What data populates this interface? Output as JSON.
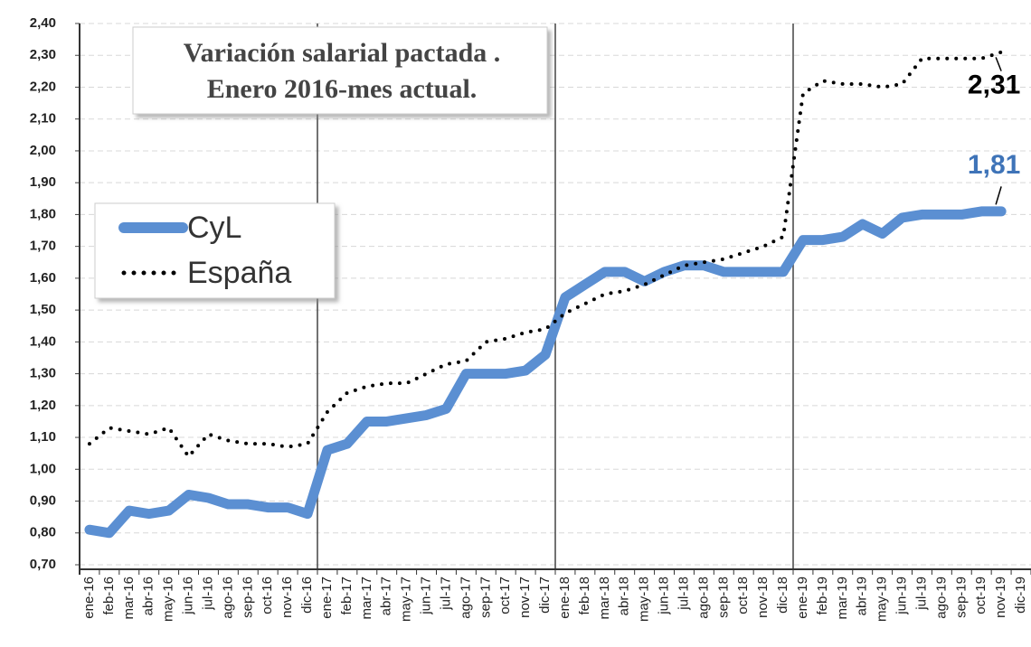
{
  "chart_data": {
    "type": "line",
    "title": [
      "Variación salarial  pactada .",
      "Enero 2016-mes actual."
    ],
    "categories": [
      "ene-16",
      "feb-16",
      "mar-16",
      "abr-16",
      "may-16",
      "jun-16",
      "jul-16",
      "ago-16",
      "sep-16",
      "oct-16",
      "nov-16",
      "dic-16",
      "ene-17",
      "feb-17",
      "mar-17",
      "abr-17",
      "may-17",
      "jun-17",
      "jul-17",
      "ago-17",
      "sep-17",
      "oct-17",
      "nov-17",
      "dic-17",
      "ene-18",
      "feb-18",
      "mar-18",
      "abr-18",
      "may-18",
      "jun-18",
      "jul-18",
      "ago-18",
      "sep-18",
      "oct-18",
      "nov-18",
      "dic-18",
      "ene-19",
      "feb-19",
      "mar-19",
      "abr-19",
      "may-19",
      "jun-19",
      "jul-19",
      "ago-19",
      "sep-19",
      "oct-19",
      "nov-19",
      "dic-19"
    ],
    "series": [
      {
        "name": "CyL",
        "color": "#5b8fd2",
        "style": "solid",
        "values": [
          0.81,
          0.8,
          0.87,
          0.86,
          0.87,
          0.92,
          0.91,
          0.89,
          0.89,
          0.88,
          0.88,
          0.86,
          1.06,
          1.08,
          1.15,
          1.15,
          1.16,
          1.17,
          1.19,
          1.3,
          1.3,
          1.3,
          1.31,
          1.36,
          1.54,
          1.58,
          1.62,
          1.62,
          1.59,
          1.62,
          1.64,
          1.64,
          1.62,
          1.62,
          1.62,
          1.62,
          1.72,
          1.72,
          1.73,
          1.77,
          1.74,
          1.79,
          1.8,
          1.8,
          1.8,
          1.81,
          1.81,
          null
        ],
        "value_labels": [
          null,
          null,
          null,
          null,
          null,
          null,
          null,
          null,
          null,
          null,
          null,
          null,
          null,
          null,
          null,
          null,
          null,
          null,
          null,
          null,
          null,
          null,
          null,
          null,
          null,
          null,
          null,
          null,
          null,
          null,
          null,
          null,
          null,
          null,
          null,
          null,
          null,
          null,
          null,
          null,
          null,
          null,
          null,
          null,
          null,
          null,
          "1,81",
          null
        ]
      },
      {
        "name": "España",
        "color": "#000000",
        "style": "dotted",
        "values": [
          1.08,
          1.13,
          1.12,
          1.11,
          1.13,
          1.04,
          1.11,
          1.09,
          1.08,
          1.08,
          1.07,
          1.08,
          1.18,
          1.24,
          1.26,
          1.27,
          1.27,
          1.3,
          1.33,
          1.34,
          1.4,
          1.41,
          1.43,
          1.44,
          1.49,
          1.52,
          1.55,
          1.56,
          1.58,
          1.61,
          1.64,
          1.65,
          1.66,
          1.68,
          1.7,
          1.73,
          2.18,
          2.22,
          2.21,
          2.21,
          2.2,
          2.21,
          2.29,
          2.29,
          2.29,
          2.29,
          2.31,
          null
        ],
        "value_labels": [
          null,
          null,
          null,
          null,
          null,
          null,
          null,
          null,
          null,
          null,
          null,
          null,
          null,
          null,
          null,
          null,
          null,
          null,
          null,
          null,
          null,
          null,
          null,
          null,
          null,
          null,
          null,
          null,
          null,
          null,
          null,
          null,
          null,
          null,
          null,
          null,
          null,
          null,
          null,
          null,
          null,
          null,
          null,
          null,
          null,
          null,
          "2,31",
          null
        ]
      }
    ],
    "ylim": [
      0.7,
      2.4
    ],
    "yticks": [
      {
        "value": 0.7,
        "label": "0,70"
      },
      {
        "value": 0.8,
        "label": "0,80"
      },
      {
        "value": 0.9,
        "label": "0,90"
      },
      {
        "value": 1.0,
        "label": "1,00"
      },
      {
        "value": 1.1,
        "label": "1,10"
      },
      {
        "value": 1.2,
        "label": "1,20"
      },
      {
        "value": 1.3,
        "label": "1,30"
      },
      {
        "value": 1.4,
        "label": "1,40"
      },
      {
        "value": 1.5,
        "label": "1,50"
      },
      {
        "value": 1.6,
        "label": "1,60"
      },
      {
        "value": 1.7,
        "label": "1,70"
      },
      {
        "value": 1.8,
        "label": "1,80"
      },
      {
        "value": 1.9,
        "label": "1,90"
      },
      {
        "value": 2.0,
        "label": "2,00"
      },
      {
        "value": 2.1,
        "label": "2,10"
      },
      {
        "value": 2.2,
        "label": "2,20"
      },
      {
        "value": 2.3,
        "label": "2,30"
      },
      {
        "value": 2.4,
        "label": "2,40"
      }
    ],
    "grid": true
  }
}
